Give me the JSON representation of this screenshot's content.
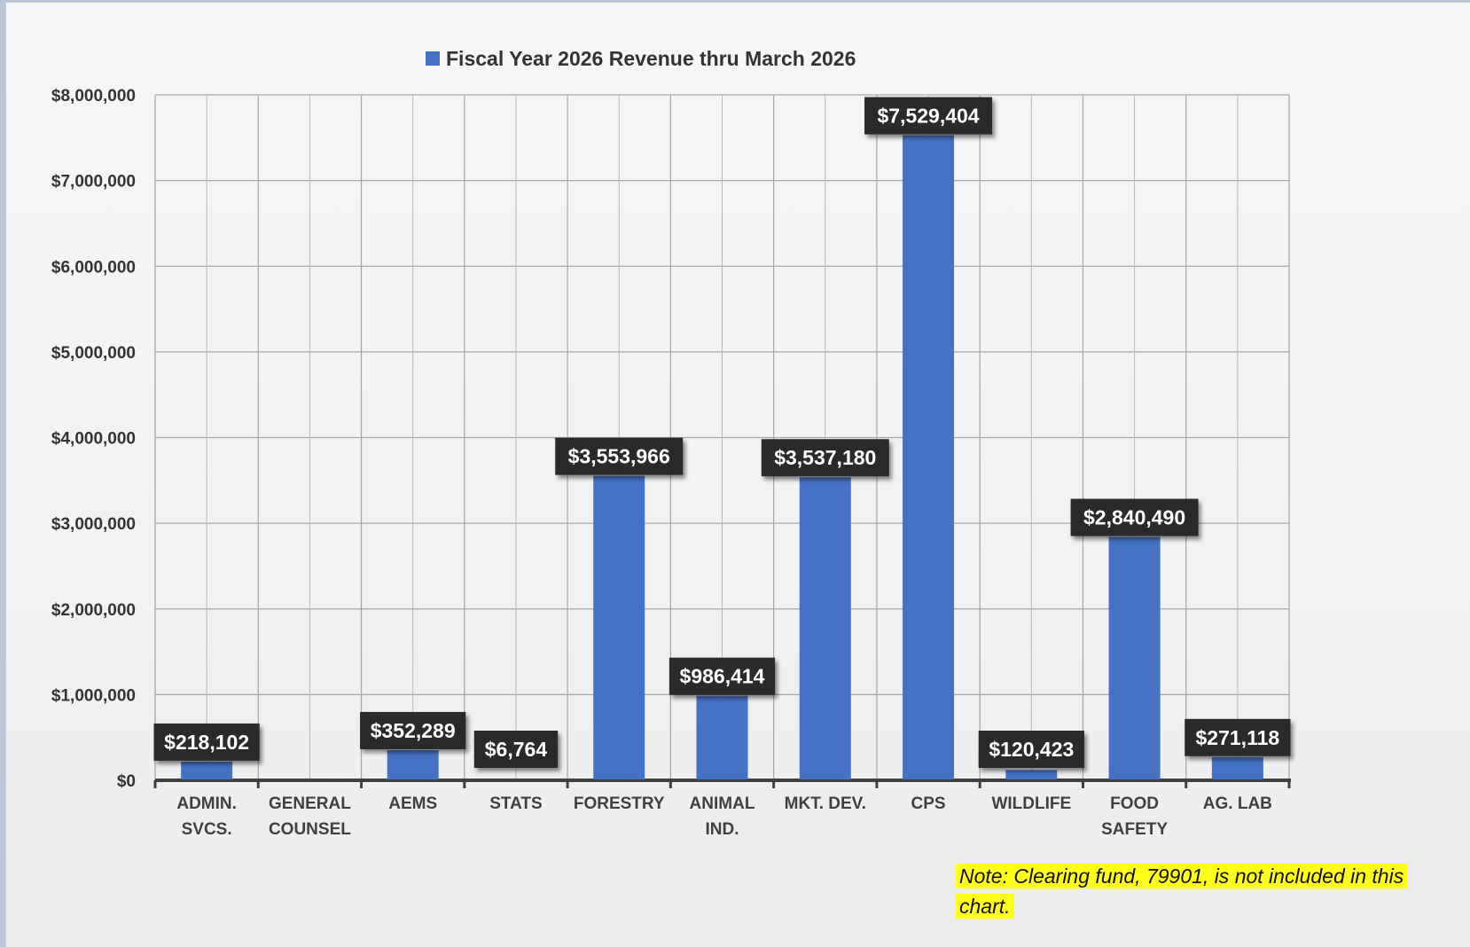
{
  "chart_data": {
    "type": "bar",
    "legend": {
      "position": "top",
      "entries": [
        "Fiscal Year 2026 Revenue thru March 2026"
      ]
    },
    "categories": [
      [
        "ADMIN.",
        "SVCS."
      ],
      [
        "GENERAL",
        "COUNSEL"
      ],
      [
        "AEMS"
      ],
      [
        "STATS"
      ],
      [
        "FORESTRY"
      ],
      [
        "ANIMAL",
        "IND."
      ],
      [
        "MKT. DEV."
      ],
      [
        "CPS"
      ],
      [
        "WILDLIFE"
      ],
      [
        "FOOD",
        "SAFETY"
      ],
      [
        "AG. LAB"
      ]
    ],
    "series": [
      {
        "name": "Fiscal Year 2026 Revenue thru March 2026",
        "color": "#4472c4",
        "values": [
          218102,
          0,
          352289,
          6764,
          3553966,
          986414,
          3537180,
          7529404,
          120423,
          2840490,
          271118
        ],
        "data_labels": [
          "$218,102",
          "",
          "$352,289",
          "$6,764",
          "$3,553,966",
          "$986,414",
          "$3,537,180",
          "$7,529,404",
          "$120,423",
          "$2,840,490",
          "$271,118"
        ]
      }
    ],
    "ylim": [
      0,
      8000000
    ],
    "yticks": [
      0,
      1000000,
      2000000,
      3000000,
      4000000,
      5000000,
      6000000,
      7000000,
      8000000
    ],
    "ytick_labels": [
      "$0",
      "$1,000,000",
      "$2,000,000",
      "$3,000,000",
      "$4,000,000",
      "$5,000,000",
      "$6,000,000",
      "$7,000,000",
      "$8,000,000"
    ],
    "grid": true,
    "label_box_color": "#2b2b2b"
  },
  "note": "Note: Clearing fund, 79901, is not included in this chart.",
  "note_highlight_color": "#ffff1a"
}
